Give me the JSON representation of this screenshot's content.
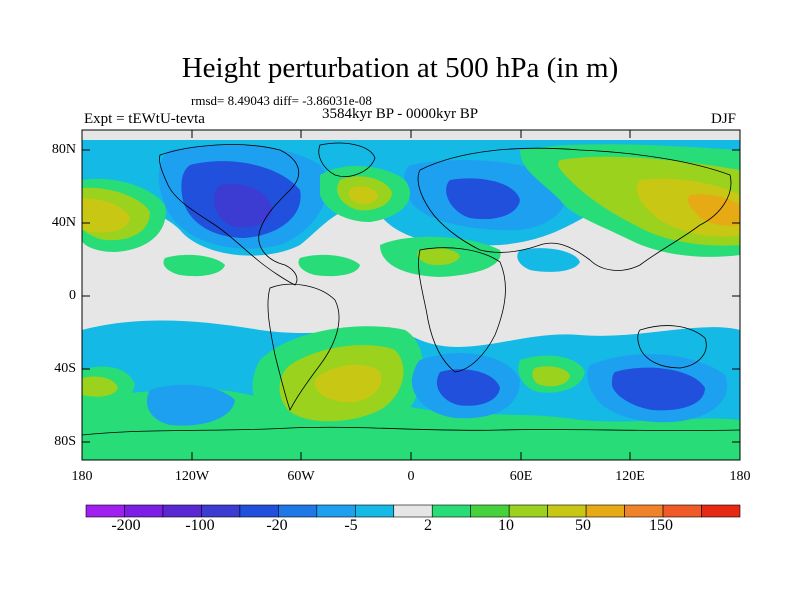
{
  "title": "Height perturbation at 500 hPa (in m)",
  "stats": "rmsd= 8.49043 diff= -3.86031e-08",
  "left_label": "Expt = tEWtU-tevta",
  "center_label": "3584kyr BP - 0000kyr BP",
  "right_label": "DJF",
  "lat_ticks": [
    "80N",
    "40N",
    "0",
    "40S",
    "80S"
  ],
  "lon_ticks": [
    "180",
    "120W",
    "60W",
    "0",
    "60E",
    "120E",
    "180"
  ],
  "colorbar": {
    "labels": [
      "-200",
      "-100",
      "-20",
      "-5",
      "2",
      "10",
      "50",
      "150"
    ],
    "colors": [
      "#a020f0",
      "#7d1ee6",
      "#5a28d2",
      "#3c3cd2",
      "#2050dc",
      "#1e78e6",
      "#1ea0f0",
      "#14b9e6",
      "#e6e6e6",
      "#28dc78",
      "#46d23c",
      "#9ad21e",
      "#c8c814",
      "#e6aa14",
      "#f08228",
      "#f05a28",
      "#e62814"
    ]
  },
  "map_colors": {
    "background": "#e6e6e6",
    "land_outline": "#000000"
  }
}
